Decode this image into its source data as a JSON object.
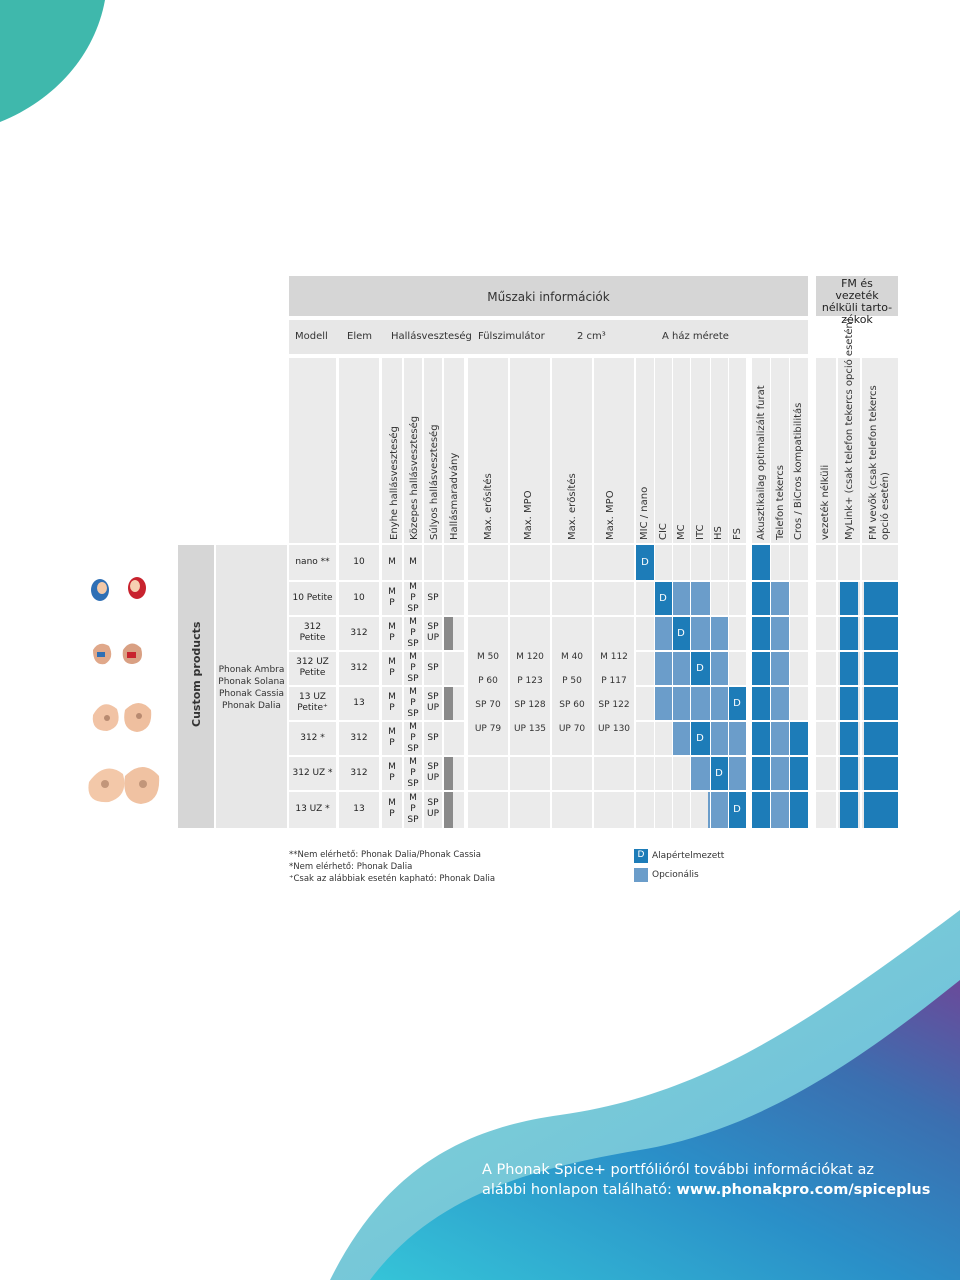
{
  "colors": {
    "teal": "#3fb8ac",
    "default_blue": "#1d7cb8",
    "optional_blue": "#6b9dca",
    "grey_header": "#d6d6d6",
    "grey_cell": "#ebebeb",
    "dark_grey": "#8a8a8a"
  },
  "header": {
    "section_main": "Műszaki információk",
    "section_fm": "FM és vezeték nélküli tarto-zékok",
    "columns": {
      "model": "Modell",
      "battery": "Elem",
      "hearing_loss": "Hallásveszteség",
      "ear_simulator": "Fülszimulátor",
      "cm2": "2 cm³",
      "shell_size": "A ház mérete"
    },
    "rotated": {
      "mild": "Enyhe hallásveszteség",
      "moderate": "Közepes hallásveszteség",
      "severe": "Súlyos hallásveszteség",
      "residual": "Hallásmaradvány",
      "max_gain_1": "Max. erősítés",
      "max_mpo_1": "Max. MPO",
      "max_gain_2": "Max. erősítés",
      "max_mpo_2": "Max. MPO",
      "mic_nano": "MIC / nano",
      "cic": "CIC",
      "mc": "MC",
      "itc": "ITC",
      "hs": "HS",
      "fs": "FS",
      "acoustic_vent": "Akusztikailag optimalizált furat",
      "telecoil": "Telefon tekercs",
      "cros": "Cros / BiCros kompatibilitás",
      "wireless": "vezeték nélküli",
      "mylink": "MyLink+ (csak telefon tekercs opció esetén)",
      "fm_receiver": "FM vevők (csak telefon tekercs opció esetén)"
    }
  },
  "left": {
    "category": "Custom products",
    "family": [
      "Phonak Ambra",
      "Phonak Solana",
      "Phonak Cassia",
      "Phonak Dalia"
    ]
  },
  "rows": [
    {
      "model": [
        "nano **"
      ],
      "battery": "10",
      "loss1": [
        "M"
      ],
      "loss2": [
        "M"
      ],
      "loss3": []
    },
    {
      "model": [
        "10 Petite"
      ],
      "battery": "10",
      "loss1": [
        "M",
        "P"
      ],
      "loss2": [
        "M",
        "P",
        "SP"
      ],
      "loss3": [
        "SP"
      ]
    },
    {
      "model": [
        "312",
        "Petite"
      ],
      "battery": "312",
      "loss1": [
        "M",
        "P"
      ],
      "loss2": [
        "M",
        "P",
        "SP"
      ],
      "loss3": [
        "SP",
        "UP"
      ]
    },
    {
      "model": [
        "312 UZ",
        "Petite"
      ],
      "battery": "312",
      "loss1": [
        "M",
        "P"
      ],
      "loss2": [
        "M",
        "P",
        "SP"
      ],
      "loss3": [
        "SP"
      ]
    },
    {
      "model": [
        "13 UZ",
        "Petite⁺"
      ],
      "battery": "13",
      "loss1": [
        "M",
        "P"
      ],
      "loss2": [
        "M",
        "P",
        "SP"
      ],
      "loss3": [
        "SP",
        "UP"
      ]
    },
    {
      "model": [
        "312 *"
      ],
      "battery": "312",
      "loss1": [
        "M",
        "P"
      ],
      "loss2": [
        "M",
        "P",
        "SP"
      ],
      "loss3": [
        "SP"
      ]
    },
    {
      "model": [
        "312 UZ *"
      ],
      "battery": "312",
      "loss1": [
        "M",
        "P"
      ],
      "loss2": [
        "M",
        "P",
        "SP"
      ],
      "loss3": [
        "SP",
        "UP"
      ]
    },
    {
      "model": [
        "13 UZ *"
      ],
      "battery": "13",
      "loss1": [
        "M",
        "P"
      ],
      "loss2": [
        "M",
        "P",
        "SP"
      ],
      "loss3": [
        "SP",
        "UP"
      ]
    }
  ],
  "simulator": {
    "gain_1": [
      "M 50",
      "P 60",
      "SP 70",
      "UP 79"
    ],
    "mpo_1": [
      "M 120",
      "P 123",
      "SP 128",
      "UP 135"
    ],
    "gain_2": [
      "M 40",
      "P 50",
      "SP 60",
      "UP 70"
    ],
    "mpo_2": [
      "M 112",
      "P 117",
      "SP 122",
      "UP 130"
    ]
  },
  "default_mark": "D",
  "legend": {
    "default": "Alapértelmezett",
    "optional": "Opcionális",
    "notes": [
      "**Nem elérhető: Phonak Dalia/Phonak Cassia",
      "*Nem elérhető: Phonak Dalia",
      "⁺Csak az alábbiak esetén kapható: Phonak Dalia"
    ]
  },
  "footer": {
    "line1": "A Phonak Spice+ portfólióról további információkat az",
    "line2_prefix": "alábbi honlapon található: ",
    "url": "www.phonakpro.com/spiceplus"
  }
}
